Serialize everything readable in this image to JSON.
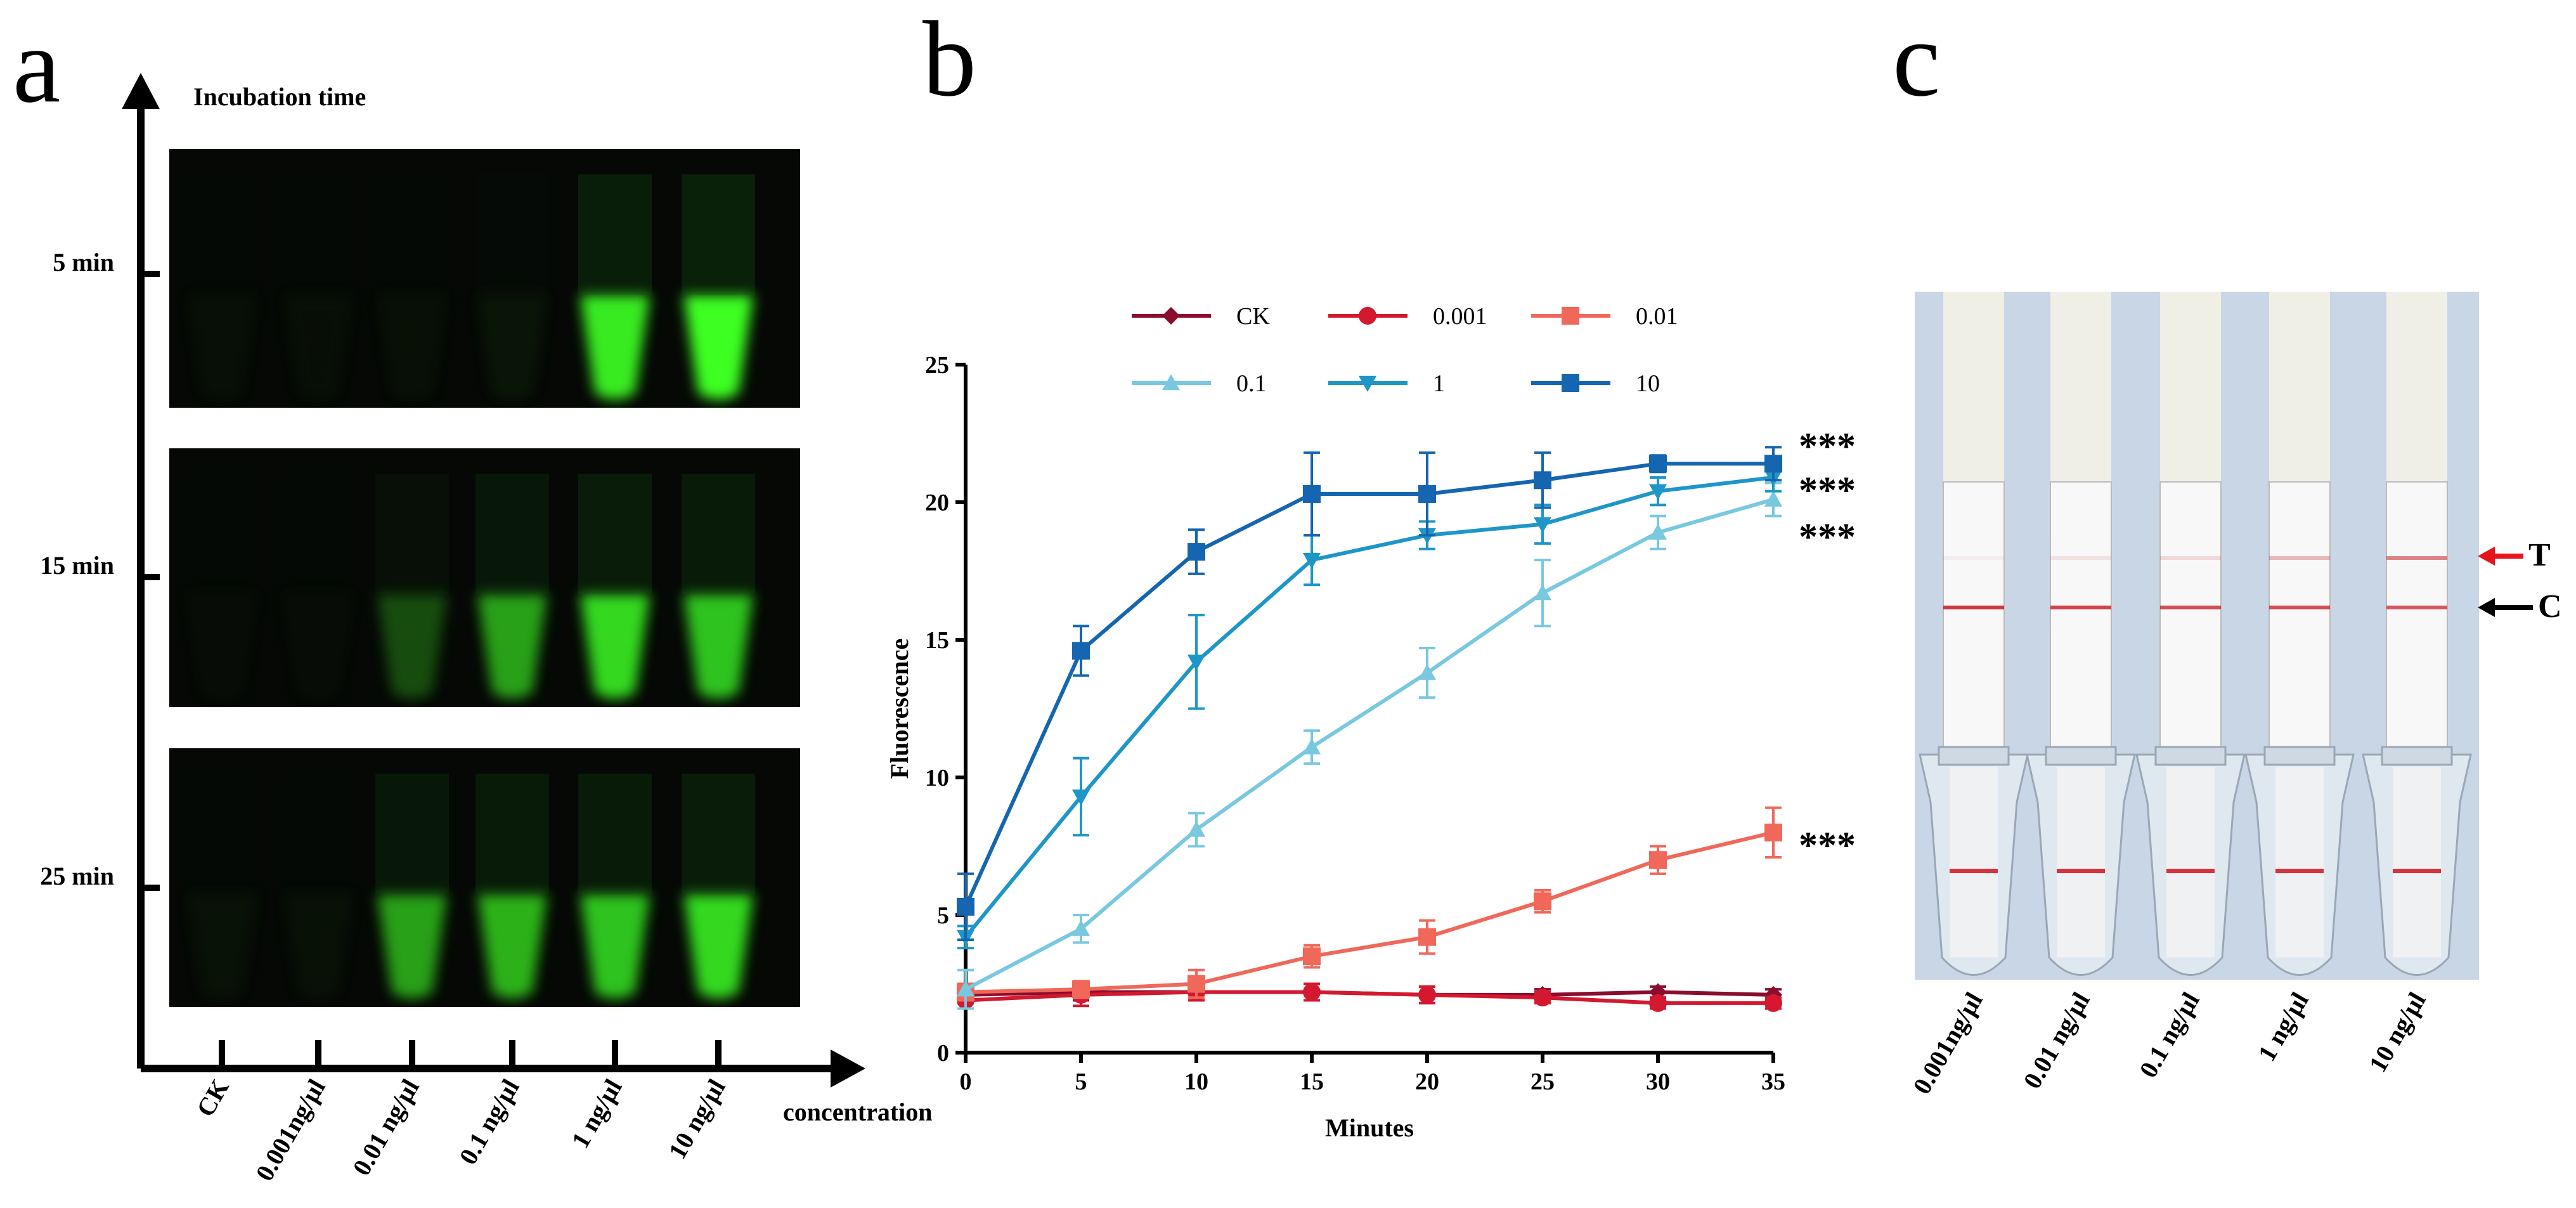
{
  "panels": {
    "a": {
      "letter": "a",
      "y_axis_title": "Incubation time",
      "x_axis_title": "concentration",
      "rows": [
        {
          "label": "5 min",
          "brightness": [
            0.04,
            0.03,
            0.05,
            0.12,
            0.95,
            1.0
          ]
        },
        {
          "label": "15 min",
          "brightness": [
            0.02,
            0.02,
            0.45,
            0.75,
            0.9,
            0.85
          ]
        },
        {
          "label": "25 min",
          "brightness": [
            0.08,
            0.06,
            0.75,
            0.8,
            0.85,
            0.9
          ]
        }
      ],
      "columns": [
        "CK",
        "0.001ng/μl",
        "0.01 ng/μl",
        "0.1 ng/μl",
        "1 ng/μl",
        "10 ng/μl"
      ]
    },
    "b": {
      "letter": "b"
    },
    "c": {
      "letter": "c",
      "strips": [
        {
          "label": "0.001ng/μl",
          "test_line": 0.05,
          "control_line": 0.9
        },
        {
          "label": "0.01 ng/μl",
          "test_line": 0.1,
          "control_line": 0.85
        },
        {
          "label": "0.1 ng/μl",
          "test_line": 0.15,
          "control_line": 0.8
        },
        {
          "label": "1 ng/μl",
          "test_line": 0.3,
          "control_line": 0.8
        },
        {
          "label": "10 ng/μl",
          "test_line": 0.55,
          "control_line": 0.75
        }
      ],
      "arrow_t": {
        "label": "T",
        "color": "#e8141c"
      },
      "arrow_c": {
        "label": "C",
        "color": "#000000"
      }
    }
  },
  "chart_data": {
    "type": "line",
    "xlabel": "Minutes",
    "ylabel": "Fluorescence",
    "x": [
      0,
      5,
      10,
      15,
      20,
      25,
      30,
      35
    ],
    "xlim": [
      0,
      35
    ],
    "ylim": [
      0,
      25
    ],
    "xticks": [
      "0",
      "5",
      "10",
      "15",
      "20",
      "25",
      "30",
      "35"
    ],
    "yticks": [
      "0",
      "5",
      "10",
      "15",
      "20",
      "25"
    ],
    "legend_position": "top",
    "series": [
      {
        "name": "CK",
        "color": "#8b0d2e",
        "marker": "diamond",
        "values": [
          2.1,
          2.2,
          2.2,
          2.2,
          2.1,
          2.1,
          2.2,
          2.1
        ],
        "errors": [
          0.3,
          0.3,
          0.3,
          0.3,
          0.3,
          0.2,
          0.2,
          0.2
        ]
      },
      {
        "name": "0.001",
        "color": "#d3182f",
        "marker": "circle",
        "values": [
          1.9,
          2.1,
          2.2,
          2.2,
          2.1,
          2.0,
          1.8,
          1.8
        ],
        "errors": [
          0.3,
          0.4,
          0.3,
          0.3,
          0.3,
          0.2,
          0.2,
          0.2
        ]
      },
      {
        "name": "0.01",
        "color": "#f0685a",
        "marker": "square",
        "values": [
          2.2,
          2.3,
          2.5,
          3.5,
          4.2,
          5.5,
          7.0,
          8.0
        ],
        "errors": [
          0.3,
          0.3,
          0.5,
          0.4,
          0.6,
          0.4,
          0.5,
          0.9
        ]
      },
      {
        "name": "0.1",
        "color": "#78c8e0",
        "marker": "triangle-up",
        "values": [
          2.3,
          4.5,
          8.1,
          11.1,
          13.8,
          16.7,
          18.9,
          20.1
        ],
        "errors": [
          0.7,
          0.5,
          0.6,
          0.6,
          0.9,
          1.2,
          0.6,
          0.6
        ]
      },
      {
        "name": "1",
        "color": "#1e96c8",
        "marker": "triangle-down",
        "values": [
          4.2,
          9.3,
          14.2,
          17.9,
          18.8,
          19.2,
          20.4,
          20.9
        ],
        "errors": [
          0.4,
          1.4,
          1.7,
          0.9,
          0.5,
          0.7,
          0.5,
          0.5
        ]
      },
      {
        "name": "10",
        "color": "#1565b0",
        "marker": "square",
        "values": [
          5.3,
          14.6,
          18.2,
          20.3,
          20.3,
          20.8,
          21.4,
          21.4
        ],
        "errors": [
          1.2,
          0.9,
          0.8,
          1.5,
          1.5,
          1.0,
          0.3,
          0.6
        ]
      }
    ],
    "annotations": [
      {
        "text": "***",
        "x": 35,
        "y": 22.5
      },
      {
        "text": "***",
        "x": 35,
        "y": 20.9
      },
      {
        "text": "***",
        "x": 35,
        "y": 19.2
      },
      {
        "text": "***",
        "x": 35,
        "y": 8.0
      }
    ]
  }
}
